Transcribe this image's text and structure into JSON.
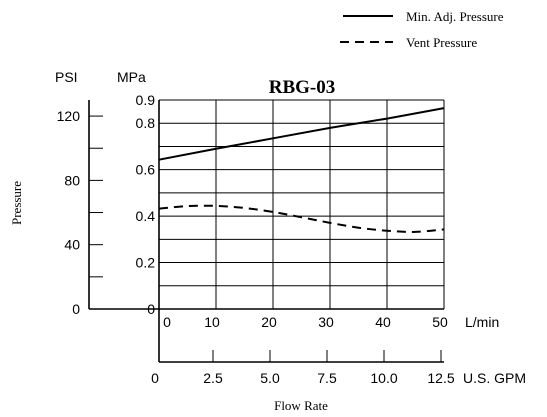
{
  "chart_data": {
    "type": "line",
    "title": "RBG-03",
    "ylabel": "Pressure",
    "xlabel": "Flow Rate",
    "y_axis_psi": {
      "unit": "PSI",
      "ticks": [
        0,
        40,
        80,
        120
      ],
      "ylim": [
        0,
        130
      ]
    },
    "y_axis_mpa": {
      "unit": "MPa",
      "ticks": [
        "0",
        "0.2",
        "0.4",
        "0.6",
        "0.8",
        "0.9"
      ],
      "ylim": [
        0,
        0.9
      ]
    },
    "x_axis_lmin": {
      "unit": "L/min",
      "ticks": [
        "0",
        "10",
        "20",
        "30",
        "40",
        "50"
      ],
      "xlim": [
        0,
        50
      ]
    },
    "x_axis_gpm": {
      "unit": "U.S. GPM",
      "ticks": [
        "0",
        "2.5",
        "5.0",
        "7.5",
        "10.0",
        "12.5"
      ]
    },
    "grid": true,
    "legend": {
      "placement": "top-right"
    },
    "series": [
      {
        "name": "Min. Adj. Pressure",
        "style": "solid",
        "x": [
          0,
          10,
          20,
          30,
          40,
          50
        ],
        "y": [
          0.643,
          0.69,
          0.735,
          0.78,
          0.82,
          0.865
        ]
      },
      {
        "name": "Vent Pressure",
        "style": "dashed",
        "x": [
          0,
          5,
          10,
          15,
          20,
          25,
          30,
          35,
          40,
          45,
          50
        ],
        "y": [
          0.432,
          0.443,
          0.444,
          0.435,
          0.418,
          0.395,
          0.371,
          0.35,
          0.337,
          0.332,
          0.343
        ]
      }
    ]
  }
}
